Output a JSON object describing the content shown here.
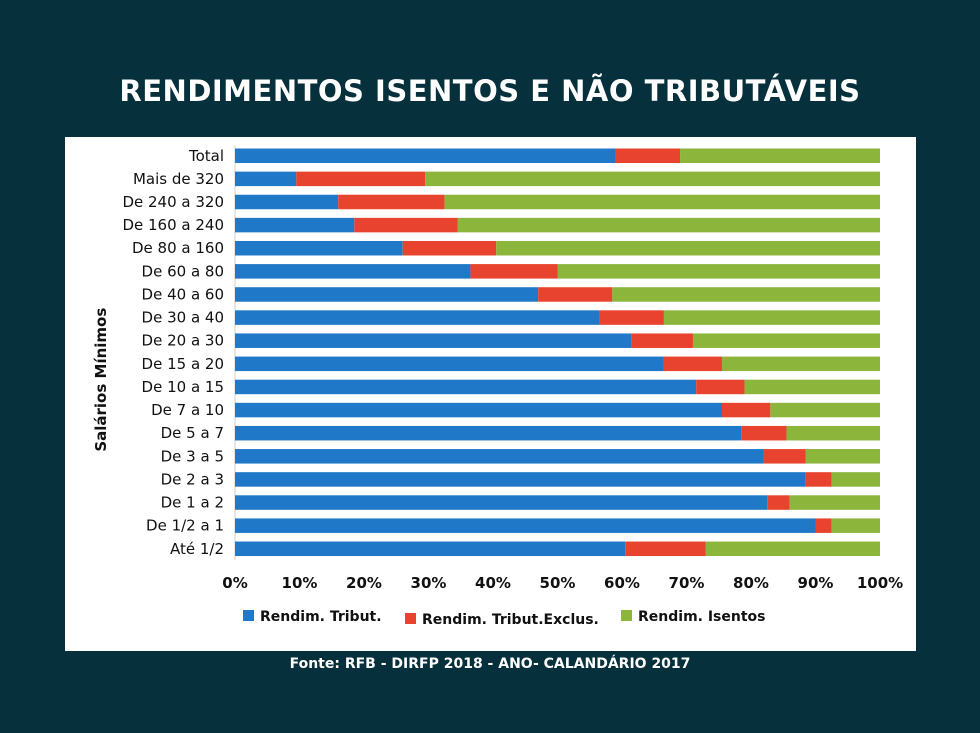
{
  "title": "RENDIMENTOS ISENTOS E NÃO TRIBUTÁVEIS",
  "source": "Fonte: RFB - DIRFP 2018 - ANO- CALANDÁRIO 2017",
  "chart_data": {
    "type": "bar",
    "orientation": "horizontal",
    "stacked": "percent",
    "ylabel": "Salários Mínimos",
    "xlim": [
      0,
      100
    ],
    "x_ticks": [
      "0%",
      "10%",
      "20%",
      "30%",
      "40%",
      "50%",
      "60%",
      "70%",
      "80%",
      "90%",
      "100%"
    ],
    "grid": false,
    "legend_position": "bottom",
    "categories": [
      "Total",
      "Mais de 320",
      "De 240 a 320",
      "De 160 a 240",
      "De 80 a 160",
      "De 60 a 80",
      "De 40 a 60",
      "De 30 a 40",
      "De 20 a 30",
      "De 15 a 20",
      "De 10 a 15",
      "De 7 a 10",
      "De 5 a 7",
      "De 3 a 5",
      "De 2 a 3",
      "De 1 a 2",
      "De 1/2 a 1",
      "Até 1/2"
    ],
    "series": [
      {
        "name": "Rendim. Tribut.",
        "color": "#1f78c8",
        "values": [
          59,
          9.5,
          16,
          18.5,
          26,
          36.5,
          47,
          56.5,
          61.5,
          66.5,
          71.5,
          75.5,
          78.5,
          82,
          88.5,
          82.5,
          90,
          60.5
        ]
      },
      {
        "name": "Rendim. Tribut.Exclus.",
        "color": "#e8432e",
        "values": [
          10,
          20,
          16.5,
          16,
          14.5,
          13.5,
          11.5,
          10,
          9.5,
          9,
          7.5,
          7.5,
          7,
          6.5,
          4,
          3.5,
          2.5,
          12.5
        ]
      },
      {
        "name": "Rendim. Isentos",
        "color": "#8cb53c",
        "values": [
          31,
          70.5,
          67.5,
          65.5,
          59.5,
          50,
          41.5,
          33.5,
          29,
          24.5,
          21,
          17,
          14.5,
          11.5,
          7.5,
          14,
          7.5,
          27
        ]
      }
    ]
  }
}
